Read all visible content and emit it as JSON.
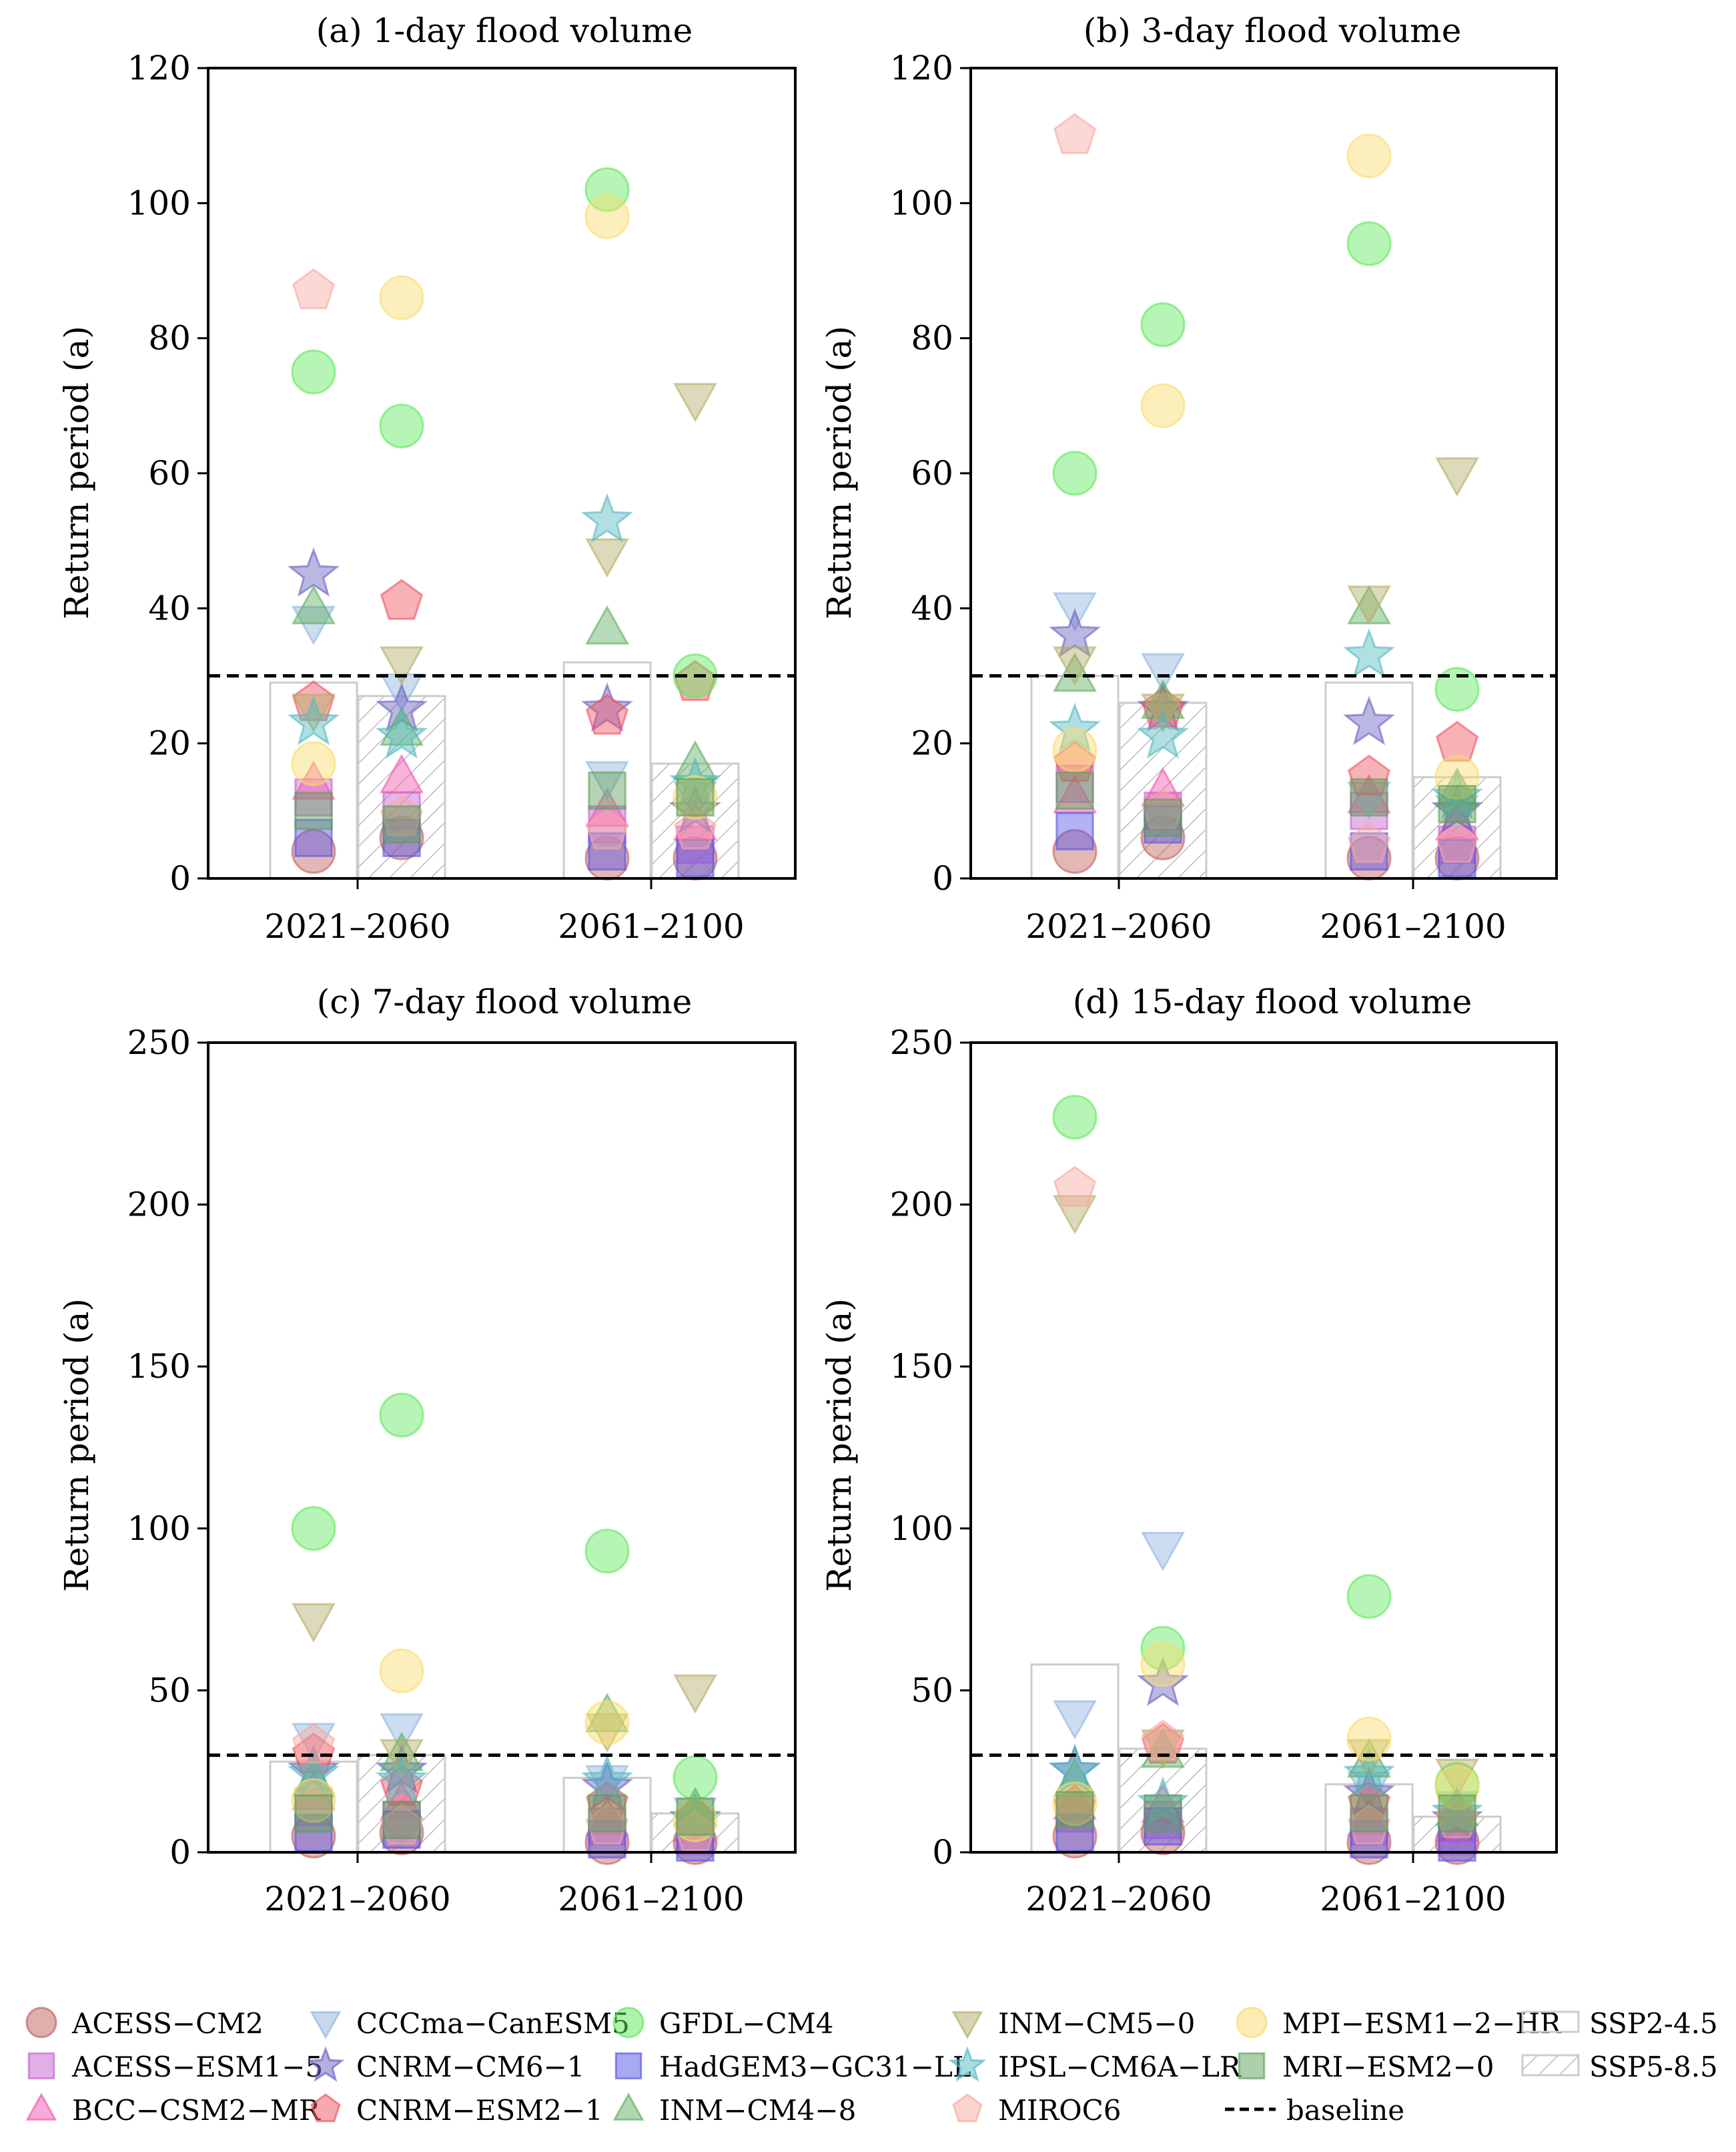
{
  "chart_data": [
    {
      "type": "scatter",
      "title": "(a) 1-day flood volume",
      "ylabel": "Return period (a)",
      "xlabel": "",
      "ylim": [
        0,
        120
      ],
      "yticks": [
        0,
        20,
        40,
        60,
        80,
        100,
        120
      ],
      "categories": [
        "2021–2060",
        "2061–2100"
      ],
      "baseline": 30,
      "bars": {
        "SSP2-4.5": [
          29,
          32
        ],
        "SSP5-8.5": [
          27,
          17
        ]
      },
      "points": {
        "ACESS-CM2": [
          [
            4,
            6
          ],
          [
            3,
            3
          ]
        ],
        "ACESS-ESM1-5": [
          [
            12,
            10
          ],
          [
            8,
            5
          ]
        ],
        "BCC-CSM2-MR": [
          [
            14,
            15
          ],
          [
            10,
            8
          ]
        ],
        "CCCma-CanESM5": [
          [
            38,
            28
          ],
          [
            15,
            12
          ]
        ],
        "CNRM-CM6-1": [
          [
            45,
            25
          ],
          [
            25,
            10
          ]
        ],
        "CNRM-ESM2-1": [
          [
            26,
            41
          ],
          [
            24,
            29
          ]
        ],
        "GFDL-CM4": [
          [
            75,
            67
          ],
          [
            102,
            30
          ]
        ],
        "HadGEM3-GC31-LL": [
          [
            6,
            6
          ],
          [
            4,
            3
          ]
        ],
        "INM-CM4-8": [
          [
            40,
            22
          ],
          [
            37,
            17
          ]
        ],
        "INM-CM5-0": [
          [
            25,
            32
          ],
          [
            48,
            71
          ]
        ],
        "IPSL-CM6A-LR": [
          [
            23,
            21
          ],
          [
            53,
            14
          ]
        ],
        "MIROC6": [
          [
            87,
            9
          ],
          [
            7,
            7
          ]
        ],
        "MPI-ESM1-2-HR": [
          [
            17,
            86
          ],
          [
            98,
            12
          ]
        ],
        "MRI-ESM2-0": [
          [
            10,
            8
          ],
          [
            13,
            12
          ]
        ]
      }
    },
    {
      "type": "scatter",
      "title": "(b) 3-day flood volume",
      "ylabel": "Return period (a)",
      "xlabel": "",
      "ylim": [
        0,
        120
      ],
      "yticks": [
        0,
        20,
        40,
        60,
        80,
        100,
        120
      ],
      "categories": [
        "2021–2060",
        "2061–2100"
      ],
      "baseline": 30,
      "bars": {
        "SSP2-4.5": [
          30,
          29
        ],
        "SSP5-8.5": [
          26,
          15
        ]
      },
      "points": {
        "ACESS-CM2": [
          [
            4,
            6
          ],
          [
            3,
            3
          ]
        ],
        "ACESS-ESM1-5": [
          [
            14,
            10
          ],
          [
            10,
            5
          ]
        ],
        "BCC-CSM2-MR": [
          [
            12,
            13
          ],
          [
            12,
            8
          ]
        ],
        "CCCma-CanESM5": [
          [
            40,
            31
          ],
          [
            12,
            10
          ]
        ],
        "CNRM-CM6-1": [
          [
            36,
            25
          ],
          [
            23,
            10
          ]
        ],
        "CNRM-ESM2-1": [
          [
            17,
            25
          ],
          [
            15,
            20
          ]
        ],
        "GFDL-CM4": [
          [
            60,
            82
          ],
          [
            94,
            28
          ]
        ],
        "HadGEM3-GC31-LL": [
          [
            7,
            8
          ],
          [
            4,
            3
          ]
        ],
        "INM-CM4-8": [
          [
            30,
            26
          ],
          [
            40,
            13
          ]
        ],
        "INM-CM5-0": [
          [
            32,
            25
          ],
          [
            41,
            60
          ]
        ],
        "IPSL-CM6A-LR": [
          [
            22,
            21
          ],
          [
            33,
            12
          ]
        ],
        "MIROC6": [
          [
            110,
            10
          ],
          [
            5,
            5
          ]
        ],
        "MPI-ESM1-2-HR": [
          [
            19,
            70
          ],
          [
            107,
            15
          ]
        ],
        "MRI-ESM2-0": [
          [
            13,
            9
          ],
          [
            12,
            11
          ]
        ]
      }
    },
    {
      "type": "scatter",
      "title": "(c) 7-day flood volume",
      "ylabel": "Return period (a)",
      "xlabel": "",
      "ylim": [
        0,
        250
      ],
      "yticks": [
        0,
        50,
        100,
        150,
        200,
        250
      ],
      "categories": [
        "2021–2060",
        "2061–2100"
      ],
      "baseline": 30,
      "bars": {
        "SSP2-4.5": [
          28,
          23
        ],
        "SSP5-8.5": [
          30,
          12
        ]
      },
      "points": {
        "ACESS-CM2": [
          [
            5,
            6
          ],
          [
            3,
            3
          ]
        ],
        "ACESS-ESM1-5": [
          [
            14,
            10
          ],
          [
            8,
            5
          ]
        ],
        "BCC-CSM2-MR": [
          [
            18,
            15
          ],
          [
            10,
            8
          ]
        ],
        "CCCma-CanESM5": [
          [
            35,
            38
          ],
          [
            22,
            12
          ]
        ],
        "CNRM-CM6-1": [
          [
            25,
            25
          ],
          [
            20,
            10
          ]
        ],
        "CNRM-ESM2-1": [
          [
            30,
            20
          ],
          [
            15,
            10
          ]
        ],
        "GFDL-CM4": [
          [
            100,
            135
          ],
          [
            93,
            23
          ]
        ],
        "HadGEM3-GC31-LL": [
          [
            6,
            7
          ],
          [
            4,
            3
          ]
        ],
        "INM-CM4-8": [
          [
            22,
            30
          ],
          [
            42,
            13
          ]
        ],
        "INM-CM5-0": [
          [
            72,
            30
          ],
          [
            38,
            50
          ]
        ],
        "IPSL-CM6A-LR": [
          [
            24,
            22
          ],
          [
            22,
            10
          ]
        ],
        "MIROC6": [
          [
            33,
            8
          ],
          [
            8,
            6
          ]
        ],
        "MPI-ESM1-2-HR": [
          [
            16,
            56
          ],
          [
            40,
            10
          ]
        ],
        "MRI-ESM2-0": [
          [
            12,
            10
          ],
          [
            12,
            11
          ]
        ]
      }
    },
    {
      "type": "scatter",
      "title": "(d) 15-day flood volume",
      "ylabel": "Return period (a)",
      "xlabel": "",
      "ylim": [
        0,
        250
      ],
      "yticks": [
        0,
        50,
        100,
        150,
        200,
        250
      ],
      "categories": [
        "2021–2060",
        "2061–2100"
      ],
      "baseline": 30,
      "bars": {
        "SSP2-4.5": [
          58,
          21
        ],
        "SSP5-8.5": [
          32,
          11
        ]
      },
      "points": {
        "ACESS-CM2": [
          [
            5,
            6
          ],
          [
            3,
            3
          ]
        ],
        "ACESS-ESM1-5": [
          [
            12,
            10
          ],
          [
            8,
            5
          ]
        ],
        "BCC-CSM2-MR": [
          [
            15,
            14
          ],
          [
            10,
            8
          ]
        ],
        "CCCma-CanESM5": [
          [
            42,
            94
          ],
          [
            20,
            14
          ]
        ],
        "CNRM-CM6-1": [
          [
            25,
            52
          ],
          [
            18,
            10
          ]
        ],
        "CNRM-ESM2-1": [
          [
            14,
            33
          ],
          [
            15,
            10
          ]
        ],
        "GFDL-CM4": [
          [
            227,
            63
          ],
          [
            79,
            21
          ]
        ],
        "HadGEM3-GC31-LL": [
          [
            6,
            8
          ],
          [
            4,
            3
          ]
        ],
        "INM-CM4-8": [
          [
            22,
            31
          ],
          [
            28,
            13
          ]
        ],
        "INM-CM5-0": [
          [
            198,
            33
          ],
          [
            30,
            24
          ]
        ],
        "IPSL-CM6A-LR": [
          [
            25,
            15
          ],
          [
            24,
            12
          ]
        ],
        "MIROC6": [
          [
            205,
            34
          ],
          [
            8,
            10
          ]
        ],
        "MPI-ESM1-2-HR": [
          [
            15,
            58
          ],
          [
            35,
            20
          ]
        ],
        "MRI-ESM2-0": [
          [
            13,
            12
          ],
          [
            12,
            12
          ]
        ]
      }
    }
  ],
  "legend": {
    "models": [
      {
        "name": "ACESS-CM2",
        "label": "ACESS−CM2",
        "marker": "circle",
        "color": "#c0605e"
      },
      {
        "name": "ACESS-ESM1-5",
        "label": "ACESS−ESM1−5",
        "marker": "square",
        "color": "#c45fd0"
      },
      {
        "name": "BCC-CSM2-MR",
        "label": "BCC−CSM2−MR",
        "marker": "triangle-up",
        "color": "#f057b0"
      },
      {
        "name": "CCCma-CanESM5",
        "label": "CCCma−CanESM5",
        "marker": "triangle-down",
        "color": "#8fb4e0"
      },
      {
        "name": "CNRM-CM6-1",
        "label": "CNRM−CM6−1",
        "marker": "star",
        "color": "#6760c0"
      },
      {
        "name": "CNRM-ESM2-1",
        "label": "CNRM−ESM2−1",
        "marker": "pentagon",
        "color": "#ef5360"
      },
      {
        "name": "GFDL-CM4",
        "label": "GFDL−CM4",
        "marker": "circle",
        "color": "#5ee85a"
      },
      {
        "name": "HadGEM3-GC31-LL",
        "label": "HadGEM3−GC31−LL",
        "marker": "square",
        "color": "#5454e6"
      },
      {
        "name": "INM-CM4-8",
        "label": "INM−CM4−8",
        "marker": "triangle-up",
        "color": "#5fae63"
      },
      {
        "name": "INM-CM5-0",
        "label": "INM−CM5−0",
        "marker": "triangle-down",
        "color": "#b2ae66"
      },
      {
        "name": "IPSL-CM6A-LR",
        "label": "IPSL−CM6A−LR",
        "marker": "star",
        "color": "#52b9bf"
      },
      {
        "name": "MIROC6",
        "label": "MIROC6",
        "marker": "pentagon",
        "color": "#f8a8a0"
      },
      {
        "name": "MPI-ESM1-2-HR",
        "label": "MPI−ESM1−2−HR",
        "marker": "circle",
        "color": "#f8dc6a"
      },
      {
        "name": "MRI-ESM2-0",
        "label": "MRI−ESM2−0",
        "marker": "square",
        "color": "#5e9f58"
      }
    ],
    "ssp245_label": "SSP2-4.5",
    "ssp585_label": "SSP5-8.5",
    "baseline_label": "baseline"
  }
}
